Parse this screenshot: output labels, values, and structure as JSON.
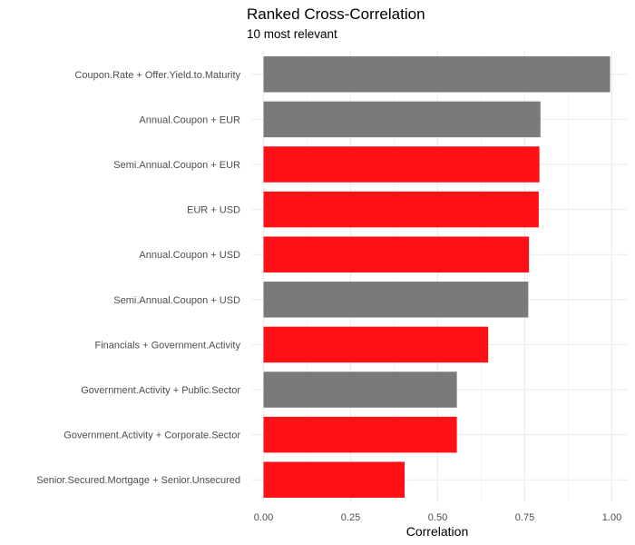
{
  "chart_data": {
    "type": "bar",
    "orientation": "horizontal",
    "title": "Ranked Cross-Correlation",
    "subtitle": "10 most relevant",
    "xlabel": "Correlation",
    "ylabel": "",
    "xlim": [
      0,
      1
    ],
    "x_ticks": [
      0,
      0.25,
      0.5,
      0.75,
      1.0
    ],
    "x_tick_labels": [
      "0.00",
      "0.25",
      "0.50",
      "0.75",
      "1.00"
    ],
    "grid": true,
    "legend": "none",
    "categories": [
      "Coupon.Rate + Offer.Yield.to.Maturity",
      "Annual.Coupon + EUR",
      "Semi.Annual.Coupon + EUR",
      "EUR + USD",
      "Annual.Coupon + USD",
      "Semi.Annual.Coupon + USD",
      "Financials + Government.Activity",
      "Government.Activity + Public.Sector",
      "Government.Activity + Corporate.Sector",
      "Senior.Secured.Mortgage + Senior.Unsecured"
    ],
    "values": [
      0.995,
      0.795,
      0.792,
      0.79,
      0.762,
      0.76,
      0.645,
      0.555,
      0.555,
      0.405
    ],
    "bar_colors": [
      "#7a7a7a",
      "#7a7a7a",
      "#ff1017",
      "#ff1017",
      "#ff1017",
      "#7a7a7a",
      "#ff1017",
      "#7a7a7a",
      "#ff1017",
      "#ff1017"
    ]
  }
}
